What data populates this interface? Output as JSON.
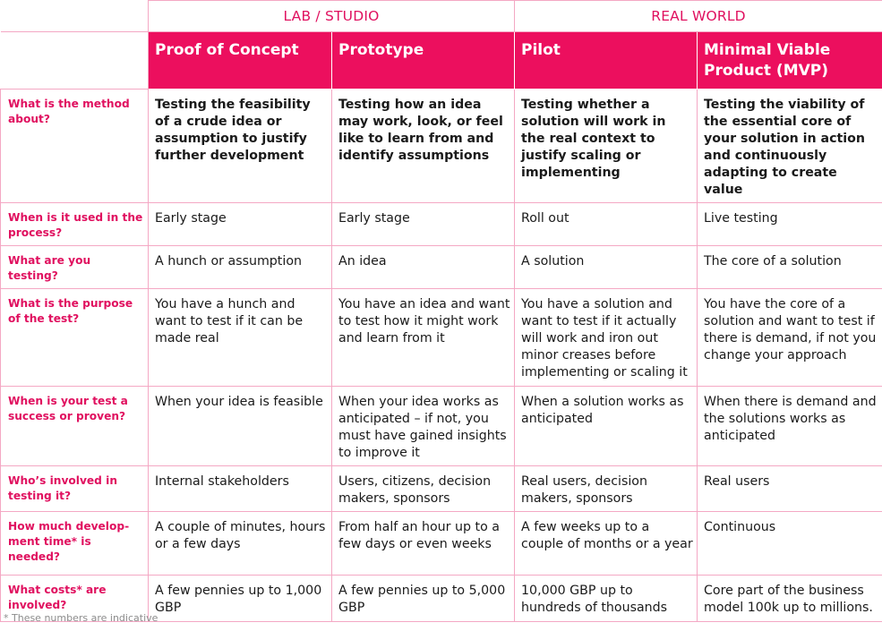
{
  "groups": {
    "lab": "LAB / STUDIO",
    "real": "REAL WORLD"
  },
  "phases": [
    "Proof of Concept",
    "Prototype",
    "Pilot",
    "Minimal Viable Product (MVP)"
  ],
  "rows": [
    {
      "q": "What is the method about?",
      "a": [
        "Testing the feasibility of a crude idea or assumption to justify further development",
        "Testing how an idea may work, look, or feel like to learn from and identify assumptions",
        "Testing whether a solution will work in the real context to justify scaling or implementing",
        "Testing the viability of the essential core of your solution in action and continuously adapting to create value"
      ]
    },
    {
      "q": "When is it used in the process?",
      "a": [
        "Early stage",
        "Early stage",
        "Roll out",
        "Live testing"
      ]
    },
    {
      "q": "What are you testing?",
      "a": [
        "A hunch or assumption",
        "An idea",
        "A solution",
        "The core of a solution"
      ]
    },
    {
      "q": "What is the purpose of the test?",
      "a": [
        "You have a hunch and want to test if it can be made real",
        "You have an idea and want to test how it might work and learn from it",
        "You have a solution and want to test if it actually will work and iron out minor creases before implementing or scaling it",
        "You have the core of a solution and want to test if there is demand, if not you change your approach"
      ]
    },
    {
      "q": "When is your test a success or proven?",
      "a": [
        "When your idea is feasible",
        "When your idea works as anticipated – if not, you must have gained insights to improve it",
        "When a solution works as anticipated",
        "When there is demand and the solutions works as anticipated"
      ]
    },
    {
      "q": "Who’s involved in testing it?",
      "a": [
        "Internal stakeholders",
        "Users, citizens, decision makers, sponsors",
        "Real users, decision makers, sponsors",
        "Real users"
      ]
    },
    {
      "q": "How much develop-ment time* is needed?",
      "a": [
        "A couple of minutes, hours or a few days",
        "From half an hour up to a few days or even weeks",
        "A few weeks up to a couple of months or a year",
        "Continuous"
      ]
    },
    {
      "q": "What costs* are involved?",
      "a": [
        "A few pennies up to 1,000 GBP",
        "A few pennies up to 5,000 GBP",
        "10,000 GBP up to hundreds of thousands",
        "Core part of the business model 100k up to millions."
      ]
    }
  ],
  "footnote": "* These numbers are indicative",
  "colors": {
    "accent": "#ec0f5e",
    "border": "#f4a8c4"
  }
}
